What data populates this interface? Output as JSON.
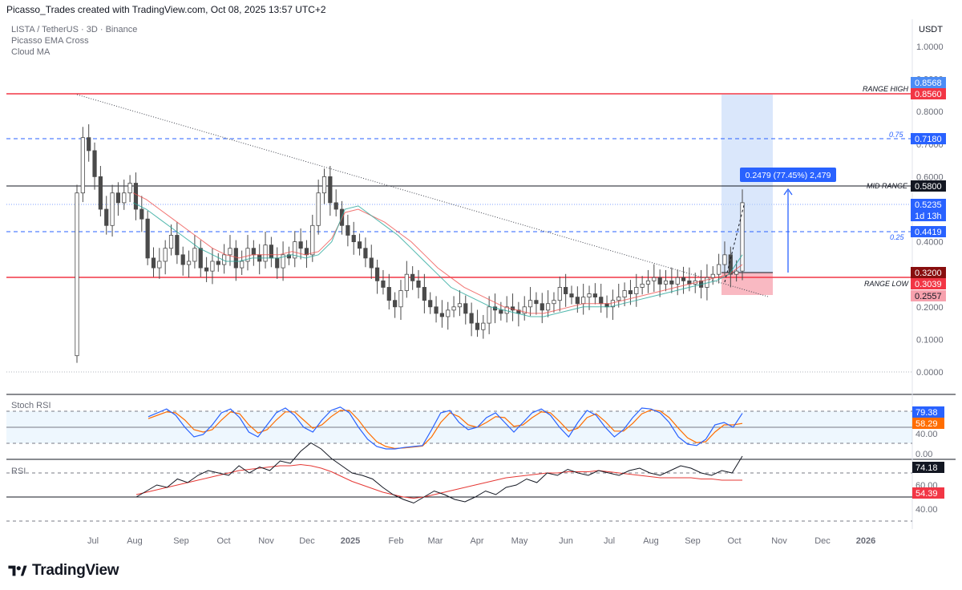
{
  "header": {
    "attribution": "Picasso_Trades created with TradingView.com, Oct 08, 2025 13:57 UTC+2"
  },
  "legend": {
    "symbol": "LISTA / TetherUS · 3D · Binance",
    "indicator1": "Picasso EMA Cross",
    "indicator2": "Cloud MA"
  },
  "currency": "USDT",
  "footer": {
    "brand": "TradingView"
  },
  "levels": {
    "range_high": "RANGE HIGH",
    "mid_range": "MID RANGE",
    "range_low": "RANGE LOW",
    "fib_075": "0.75",
    "fib_025": "0.25"
  },
  "measure_label": "0.2479 (77.45%) 2,479",
  "price_tags": [
    {
      "text": "0.8568",
      "bg": "#4c8cf5",
      "fg": "#ffffff"
    },
    {
      "text": "0.8560",
      "bg": "#f23645",
      "fg": "#ffffff"
    },
    {
      "text": "0.7180",
      "bg": "#2962ff",
      "fg": "#ffffff"
    },
    {
      "text": "0.5800",
      "bg": "#131722",
      "fg": "#ffffff"
    },
    {
      "text": "0.5235",
      "bg": "#2962ff",
      "fg": "#ffffff"
    },
    {
      "text": "1d 13h",
      "bg": "#2962ff",
      "fg": "#ffffff"
    },
    {
      "text": "0.4419",
      "bg": "#2962ff",
      "fg": "#ffffff"
    },
    {
      "text": "0.3200",
      "bg": "#880e0e",
      "fg": "#ffffff"
    },
    {
      "text": "0.3039",
      "bg": "#f23645",
      "fg": "#ffffff"
    },
    {
      "text": "0.2557",
      "bg": "#f7a1ad",
      "fg": "#131722"
    }
  ],
  "stoch": {
    "title": "Stoch RSI",
    "k_value": "79.38",
    "d_value": "58.29",
    "axis_labels": [
      "40.00",
      "0.00"
    ]
  },
  "rsi": {
    "title": "RSI",
    "value": "74.18",
    "ma_value": "54.39",
    "axis_labels": [
      "60.00",
      "40.00"
    ]
  },
  "colors": {
    "up": "#ffffff",
    "down": "#4a4a4a",
    "ema_fast": "#26a69a",
    "ema_slow": "#ef5350",
    "accent": "#2962ff",
    "range": "#f23645"
  },
  "chart_data": {
    "type": "candlestick",
    "title": "LISTA / TetherUS · 3D · Binance",
    "x_ticks": [
      "Jul",
      "Aug",
      "Sep",
      "Oct",
      "Nov",
      "Dec",
      "2025",
      "Feb",
      "Mar",
      "Apr",
      "May",
      "Jun",
      "Jul",
      "Aug",
      "Sep",
      "Oct",
      "Nov",
      "Dec",
      "2026"
    ],
    "y_ticks": [
      "1.0000",
      "0.9000",
      "0.8000",
      "0.7000",
      "0.6000",
      "0.5000",
      "0.4000",
      "0.3000",
      "0.2000",
      "0.1000",
      "0.0000"
    ],
    "ylim": [
      0,
      1.0
    ],
    "horizontal_levels": [
      0.856,
      0.718,
      0.58,
      0.4419,
      0.3039
    ],
    "close_series": [
      0.55,
      0.72,
      0.68,
      0.6,
      0.5,
      0.45,
      0.55,
      0.52,
      0.55,
      0.58,
      0.5,
      0.47,
      0.35,
      0.32,
      0.34,
      0.38,
      0.42,
      0.36,
      0.33,
      0.34,
      0.38,
      0.32,
      0.31,
      0.34,
      0.33,
      0.36,
      0.38,
      0.32,
      0.34,
      0.38,
      0.36,
      0.34,
      0.39,
      0.35,
      0.32,
      0.36,
      0.35,
      0.4,
      0.38,
      0.36,
      0.45,
      0.55,
      0.6,
      0.52,
      0.5,
      0.45,
      0.42,
      0.4,
      0.38,
      0.35,
      0.32,
      0.28,
      0.26,
      0.22,
      0.2,
      0.25,
      0.3,
      0.28,
      0.26,
      0.22,
      0.2,
      0.18,
      0.17,
      0.19,
      0.2,
      0.21,
      0.18,
      0.15,
      0.13,
      0.15,
      0.2,
      0.19,
      0.18,
      0.2,
      0.19,
      0.18,
      0.2,
      0.22,
      0.21,
      0.19,
      0.21,
      0.22,
      0.26,
      0.24,
      0.23,
      0.21,
      0.23,
      0.24,
      0.23,
      0.21,
      0.2,
      0.22,
      0.23,
      0.25,
      0.24,
      0.26,
      0.27,
      0.28,
      0.29,
      0.27,
      0.28,
      0.27,
      0.29,
      0.28,
      0.27,
      0.28,
      0.26,
      0.29,
      0.3,
      0.33,
      0.36,
      0.3,
      0.31,
      0.52
    ],
    "ema_fast": [
      0.52,
      0.5,
      0.47,
      0.44,
      0.41,
      0.38,
      0.36,
      0.34,
      0.34,
      0.35,
      0.35,
      0.35,
      0.36,
      0.35,
      0.36,
      0.4,
      0.5,
      0.51,
      0.48,
      0.45,
      0.42,
      0.38,
      0.34,
      0.3,
      0.26,
      0.24,
      0.22,
      0.2,
      0.19,
      0.18,
      0.17,
      0.17,
      0.18,
      0.19,
      0.2,
      0.2,
      0.2,
      0.21,
      0.22,
      0.23,
      0.24,
      0.25,
      0.26,
      0.27,
      0.28,
      0.3,
      0.36
    ],
    "ema_slow": [
      0.55,
      0.53,
      0.5,
      0.47,
      0.44,
      0.41,
      0.38,
      0.36,
      0.35,
      0.36,
      0.36,
      0.36,
      0.37,
      0.36,
      0.37,
      0.41,
      0.49,
      0.5,
      0.48,
      0.46,
      0.43,
      0.4,
      0.36,
      0.32,
      0.29,
      0.26,
      0.24,
      0.22,
      0.2,
      0.19,
      0.18,
      0.18,
      0.19,
      0.2,
      0.21,
      0.21,
      0.21,
      0.22,
      0.23,
      0.24,
      0.25,
      0.26,
      0.27,
      0.28,
      0.29,
      0.3,
      0.33
    ],
    "stoch_k": [
      72,
      80,
      88,
      75,
      50,
      30,
      35,
      55,
      80,
      88,
      70,
      40,
      30,
      55,
      80,
      90,
      75,
      50,
      40,
      65,
      85,
      92,
      80,
      50,
      25,
      10,
      5,
      5,
      8,
      10,
      12,
      45,
      80,
      85,
      60,
      45,
      50,
      70,
      80,
      60,
      40,
      60,
      80,
      88,
      75,
      50,
      30,
      60,
      85,
      75,
      50,
      30,
      45,
      70,
      90,
      88,
      80,
      60,
      30,
      15,
      12,
      25,
      55,
      60,
      50,
      79
    ],
    "stoch_d": [
      68,
      75,
      82,
      80,
      65,
      45,
      40,
      45,
      65,
      82,
      78,
      55,
      38,
      45,
      65,
      82,
      82,
      65,
      48,
      55,
      72,
      85,
      85,
      65,
      40,
      20,
      10,
      6,
      7,
      9,
      11,
      30,
      60,
      80,
      72,
      55,
      50,
      60,
      72,
      70,
      52,
      55,
      70,
      82,
      80,
      62,
      42,
      48,
      70,
      78,
      62,
      42,
      42,
      58,
      78,
      86,
      84,
      70,
      48,
      28,
      18,
      20,
      40,
      55,
      55,
      58
    ],
    "rsi": [
      40,
      45,
      50,
      48,
      55,
      52,
      58,
      62,
      60,
      58,
      66,
      60,
      65,
      62,
      70,
      68,
      78,
      85,
      80,
      72,
      66,
      60,
      58,
      55,
      48,
      42,
      38,
      35,
      40,
      45,
      42,
      38,
      36,
      40,
      45,
      42,
      48,
      50,
      55,
      52,
      60,
      58,
      63,
      60,
      58,
      62,
      60,
      58,
      62,
      64,
      60,
      58,
      62,
      66,
      64,
      60,
      58,
      62,
      60,
      74
    ],
    "rsi_ma": [
      42,
      44,
      46,
      48,
      50,
      52,
      54,
      56,
      58,
      60,
      62,
      63,
      64,
      65,
      66,
      66,
      67,
      66,
      64,
      61,
      57,
      53,
      50,
      47,
      44,
      42,
      40,
      39,
      40,
      42,
      44,
      46,
      48,
      50,
      52,
      54,
      56,
      57,
      58,
      59,
      60,
      60,
      61,
      61,
      61,
      62,
      61,
      60,
      59,
      58,
      57,
      56,
      56,
      56,
      56,
      55,
      55,
      54,
      54,
      54
    ]
  }
}
